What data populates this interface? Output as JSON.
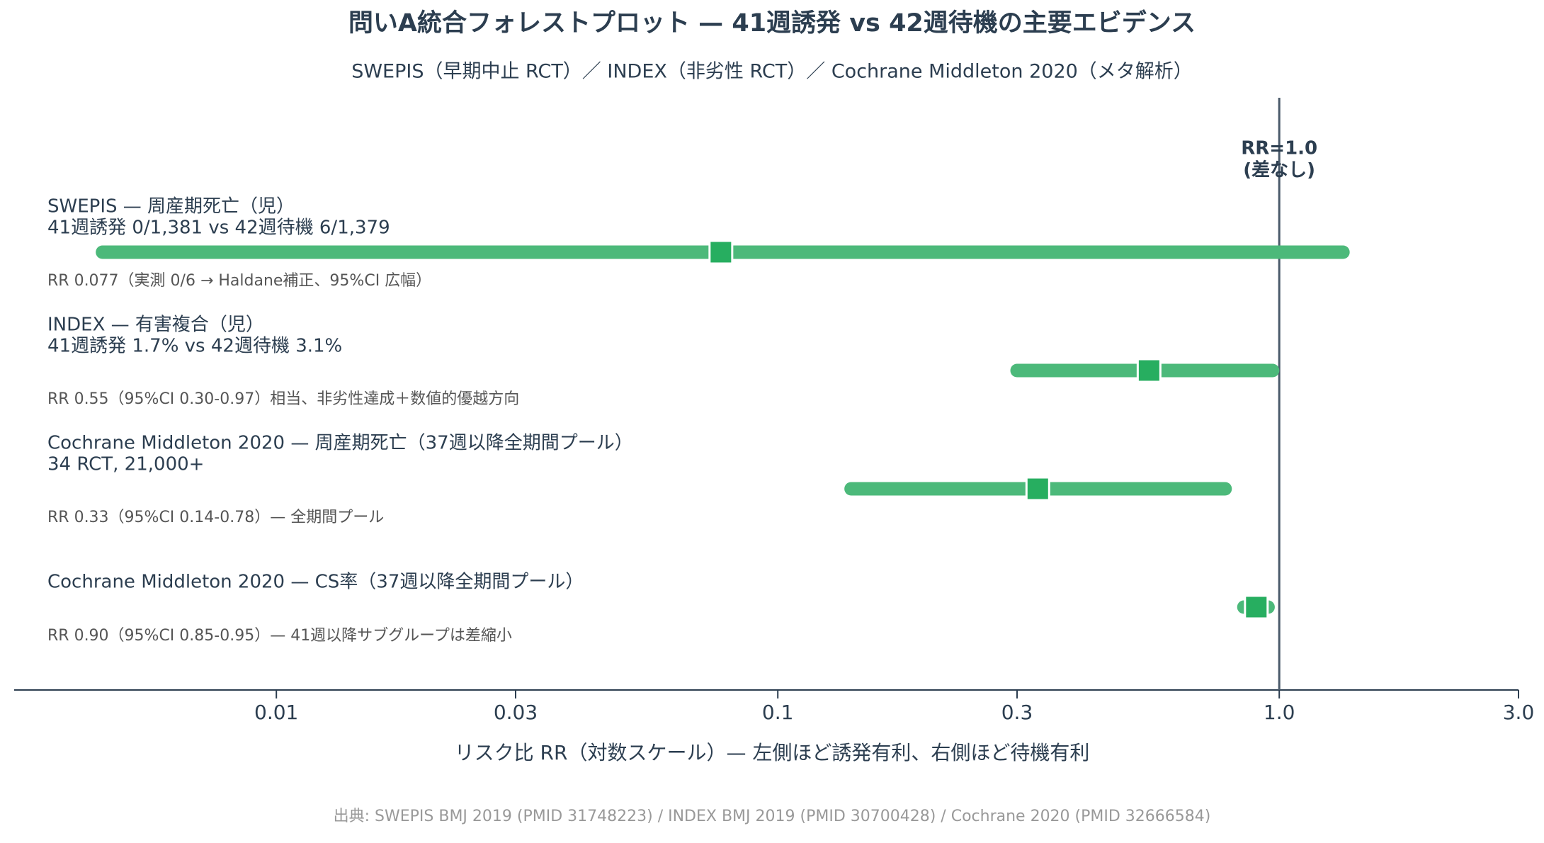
{
  "chart_data": {
    "type": "forest",
    "title": "問いA統合フォレストプロット — 41週誘発 vs 42週待機の主要エビデンス",
    "subtitle": "SWEPIS（早期中止 RCT）／ INDEX（非劣性 RCT）／ Cochrane Middleton 2020（メタ解析）",
    "xlabel": "リスク比 RR（対数スケール）— 左側ほど誘発有利、右側ほど待機有利",
    "source": "出典: SWEPIS BMJ 2019 (PMID 31748223) / INDEX BMJ 2019 (PMID 30700428) / Cochrane 2020 (PMID 32666584)",
    "xscale": "log",
    "xlim": [
      0.003,
      3
    ],
    "xticks": [
      0.01,
      0.03,
      0.1,
      0.3,
      {
        "value": 1,
        "label": "1.0"
      },
      {
        "value": 3,
        "label": "3.0"
      }
    ],
    "ref_value": 1,
    "ref_label": [
      "RR=1.0",
      "(差なし)"
    ],
    "line_color": "#4cb97a",
    "marker_color": "#27ae60",
    "studies": [
      {
        "label": "SWEPIS — 周産期死亡（児）",
        "detail": "41週誘発 0/1,381 vs 42週待機 6/1,379",
        "note": "RR 0.077（実測 0/6 → Haldane補正、95%CI 広幅）",
        "estimate": 0.077,
        "ci_low": 0.0045,
        "ci_high": 1.34
      },
      {
        "label": "INDEX — 有害複合（児）",
        "detail": "41週誘発 1.7% vs 42週待機 3.1%",
        "note": "RR 0.55（95%CI 0.30-0.97）相当、非劣性達成＋数値的優越方向",
        "estimate": 0.55,
        "ci_low": 0.3,
        "ci_high": 0.97
      },
      {
        "label": "Cochrane Middleton 2020 — 周産期死亡（37週以降全期間プール）",
        "detail": "34 RCT, 21,000+",
        "note": "RR 0.33（95%CI 0.14-0.78）— 全期間プール",
        "estimate": 0.33,
        "ci_low": 0.14,
        "ci_high": 0.78
      },
      {
        "label": "Cochrane Middleton 2020 — CS率（37週以降全期間プール）",
        "note": "RR 0.90（95%CI 0.85-0.95）— 41週以降サブグループは差縮小",
        "estimate": 0.9,
        "ci_low": 0.85,
        "ci_high": 0.95
      }
    ]
  }
}
